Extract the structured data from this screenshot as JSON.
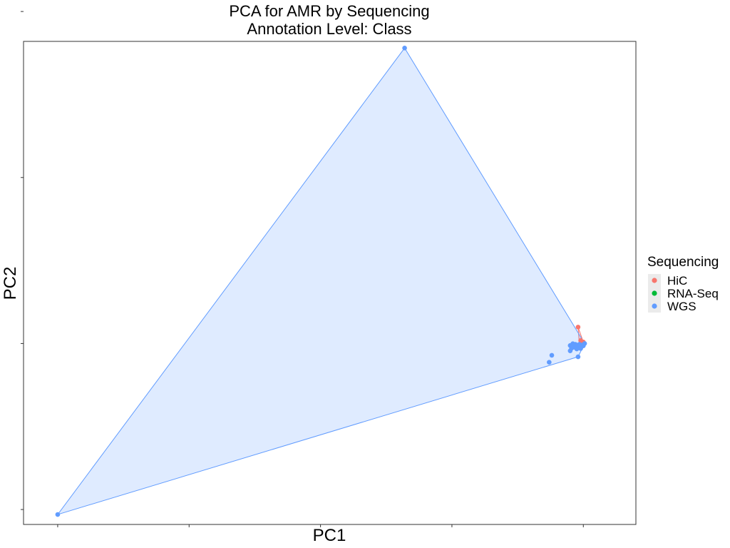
{
  "chart_data": {
    "type": "scatter",
    "title": "PCA for AMR by Sequencing",
    "subtitle": "Annotation Level: Class",
    "xlabel": "PC1",
    "ylabel": "PC2",
    "xlim": [
      -12.8,
      10.5
    ],
    "ylim": [
      -6.9,
      22.2
    ],
    "x_ticks": [
      -11.5,
      -6.5,
      -1.5,
      3.5,
      8.5
    ],
    "y_ticks": [
      -6,
      4,
      14,
      24
    ],
    "tick_labels_visible": false,
    "grid": false,
    "hulls": true,
    "legend": {
      "title": "Sequencing",
      "placement": "right",
      "entries": [
        "HiC",
        "RNA-Seq",
        "WGS"
      ]
    },
    "colors": {
      "HiC": "#F8766D",
      "RNA-Seq": "#00BA38",
      "WGS": "#619CFF"
    },
    "series": [
      {
        "name": "HiC",
        "points": [
          [
            8.3,
            4.99
          ],
          [
            8.4,
            4.18
          ],
          [
            8.5,
            4.09
          ],
          [
            8.35,
            3.92
          ]
        ]
      },
      {
        "name": "RNA-Seq",
        "points": []
      },
      {
        "name": "WGS",
        "points": [
          [
            -11.5,
            -6.3
          ],
          [
            1.7,
            21.8
          ],
          [
            7.2,
            2.87
          ],
          [
            7.3,
            3.29
          ],
          [
            8.3,
            3.2
          ],
          [
            8.0,
            3.56
          ],
          [
            8.0,
            3.88
          ],
          [
            8.1,
            3.99
          ],
          [
            8.2,
            3.82
          ],
          [
            8.3,
            3.82
          ],
          [
            8.4,
            3.74
          ],
          [
            8.5,
            3.86
          ],
          [
            8.55,
            4.0
          ],
          [
            8.45,
            3.91
          ],
          [
            8.25,
            3.67
          ],
          [
            8.35,
            3.95
          ],
          [
            8.15,
            3.78
          ],
          [
            8.05,
            3.71
          ],
          [
            8.4,
            3.7
          ],
          [
            8.2,
            3.95
          ]
        ]
      }
    ]
  }
}
